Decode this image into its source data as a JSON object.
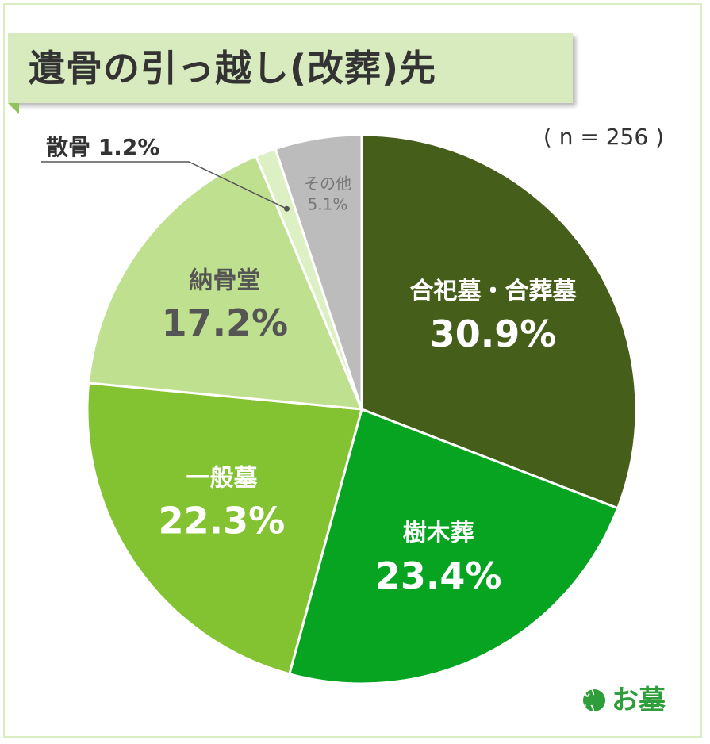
{
  "chart_data": {
    "type": "pie",
    "title": "遺骨の引っ越し(改葬)先",
    "subtitle": "( n = 256 )",
    "categories": [
      "合祀墓・合葬墓",
      "樹木葬",
      "一般墓",
      "納骨堂",
      "散骨",
      "その他"
    ],
    "values": [
      30.9,
      23.4,
      22.3,
      17.2,
      1.2,
      5.1
    ],
    "value_labels": [
      "30.9%",
      "23.4%",
      "22.3%",
      "17.2%",
      "1.2%",
      "5.1%"
    ],
    "colors": [
      "#455e1a",
      "#06a421",
      "#83c332",
      "#bfe08e",
      "#dcf0c4",
      "#bcbcbc"
    ],
    "start_angle": "12 o'clock",
    "direction": "clockwise",
    "legend": "none"
  },
  "logo": {
    "badge": "いい",
    "text": "お墓"
  }
}
